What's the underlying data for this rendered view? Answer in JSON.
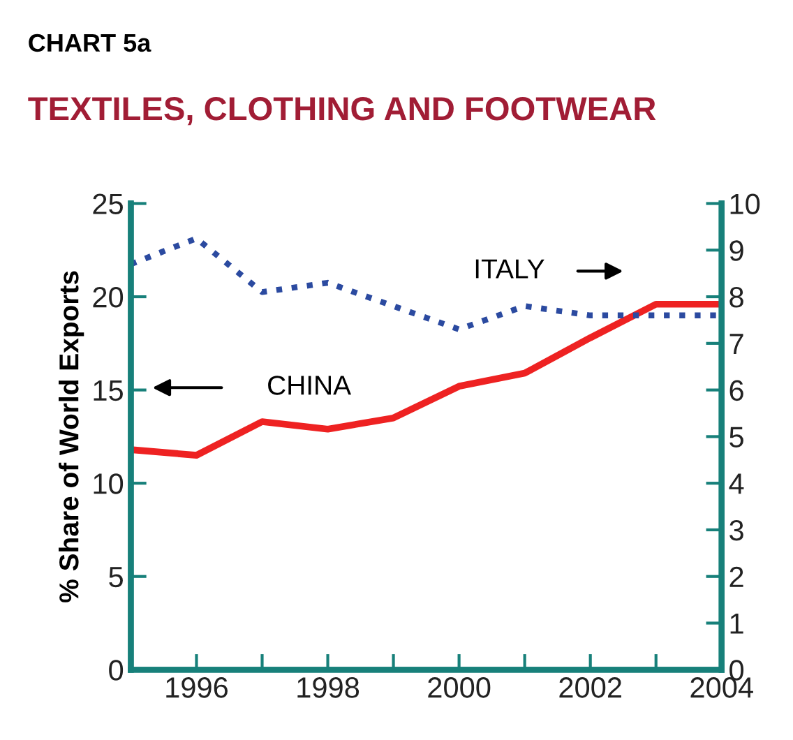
{
  "chart_data": {
    "type": "line",
    "title": "CHART 5a",
    "subtitle": "TEXTILES, CLOTHING AND FOOTWEAR",
    "ylabel": "% Share of World Exports",
    "x": [
      1995,
      1996,
      1997,
      1998,
      1999,
      2000,
      2001,
      2002,
      2003,
      2004
    ],
    "series": [
      {
        "name": "CHINA",
        "color": "#ee2222",
        "line_style": "solid",
        "values": [
          11.8,
          11.5,
          13.3,
          12.9,
          13.5,
          15.2,
          15.9,
          17.8,
          19.6,
          19.6
        ]
      },
      {
        "name": "ITALY",
        "color": "#2b4aa0",
        "line_style": "dotted",
        "axis": "y2",
        "values": [
          8.7,
          9.25,
          8.1,
          8.3,
          7.8,
          7.3,
          7.8,
          7.6,
          7.6,
          7.6
        ]
      }
    ],
    "xlim": [
      1995,
      2004
    ],
    "xticks": [
      {
        "value": 1995,
        "label": null
      },
      1996,
      {
        "value": 1997,
        "label": null
      },
      1998,
      {
        "value": 1999,
        "label": null
      },
      2000,
      {
        "value": 2001,
        "label": null
      },
      2002,
      {
        "value": 2003,
        "label": null
      },
      2004
    ],
    "ylim": [
      0,
      25
    ],
    "yticks": [
      0,
      5,
      10,
      15,
      20,
      25
    ],
    "y2lim": [
      0,
      10
    ],
    "y2ticks": [
      0,
      1,
      2,
      3,
      4,
      5,
      6,
      7,
      8,
      9,
      10
    ],
    "grid": false,
    "legend": false
  }
}
